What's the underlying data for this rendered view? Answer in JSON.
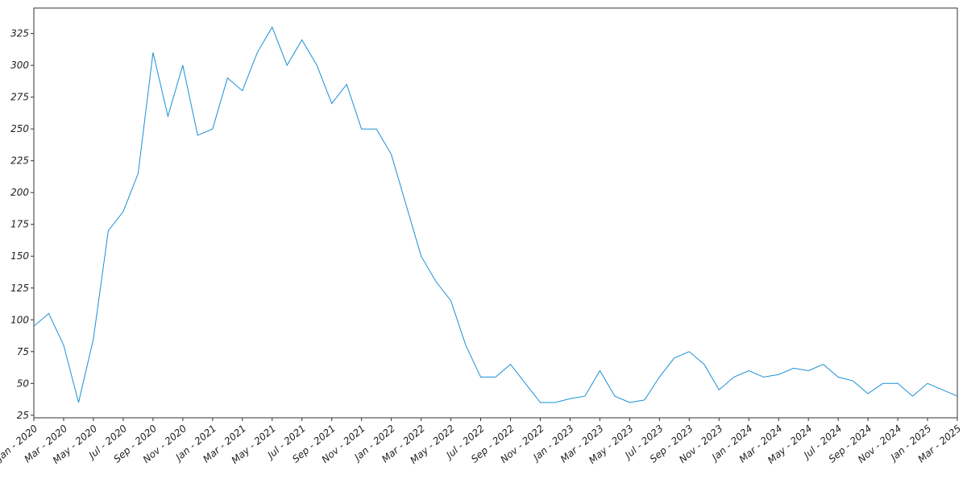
{
  "chart_data": {
    "type": "line",
    "x": [
      "2020-01",
      "2020-02",
      "2020-03",
      "2020-04",
      "2020-05",
      "2020-06",
      "2020-07",
      "2020-08",
      "2020-09",
      "2020-10",
      "2020-11",
      "2020-12",
      "2021-01",
      "2021-02",
      "2021-03",
      "2021-04",
      "2021-05",
      "2021-06",
      "2021-07",
      "2021-08",
      "2021-09",
      "2021-10",
      "2021-11",
      "2021-12",
      "2022-01",
      "2022-02",
      "2022-03",
      "2022-04",
      "2022-05",
      "2022-06",
      "2022-07",
      "2022-08",
      "2022-09",
      "2022-10",
      "2022-11",
      "2022-12",
      "2023-01",
      "2023-02",
      "2023-03",
      "2023-04",
      "2023-05",
      "2023-06",
      "2023-07",
      "2023-08",
      "2023-09",
      "2023-10",
      "2023-11",
      "2023-12",
      "2024-01",
      "2024-02",
      "2024-03",
      "2024-04",
      "2024-05",
      "2024-06",
      "2024-07",
      "2024-08",
      "2024-09",
      "2024-10",
      "2024-11",
      "2024-12",
      "2025-01",
      "2025-02",
      "2025-03"
    ],
    "series": [
      {
        "color": "#1a8fd6",
        "values": [
          95,
          105,
          80,
          35,
          85,
          170,
          185,
          215,
          310,
          260,
          300,
          245,
          250,
          290,
          280,
          310,
          330,
          300,
          320,
          300,
          270,
          285,
          250,
          250,
          230,
          190,
          150,
          130,
          115,
          80,
          55,
          55,
          65,
          50,
          35,
          35,
          38,
          40,
          60,
          40,
          35,
          37,
          55,
          70,
          75,
          65,
          45,
          55,
          60,
          55,
          57,
          62,
          60,
          65,
          55,
          52,
          42,
          50,
          50,
          40,
          50,
          45,
          40
        ]
      }
    ],
    "xlim": [
      "2020-01",
      "2025-03"
    ],
    "xticks": [
      {
        "value": "2020-01",
        "label": "Jan - 2020"
      },
      {
        "value": "2020-03",
        "label": "Mar - 2020"
      },
      {
        "value": "2020-05",
        "label": "May - 2020"
      },
      {
        "value": "2020-07",
        "label": "Jul - 2020"
      },
      {
        "value": "2020-09",
        "label": "Sep - 2020"
      },
      {
        "value": "2020-11",
        "label": "Nov - 2020"
      },
      {
        "value": "2021-01",
        "label": "Jan - 2021"
      },
      {
        "value": "2021-03",
        "label": "Mar - 2021"
      },
      {
        "value": "2021-05",
        "label": "May - 2021"
      },
      {
        "value": "2021-07",
        "label": "Jul - 2021"
      },
      {
        "value": "2021-09",
        "label": "Sep - 2021"
      },
      {
        "value": "2021-11",
        "label": "Nov - 2021"
      },
      {
        "value": "2022-01",
        "label": "Jan - 2022"
      },
      {
        "value": "2022-03",
        "label": "Mar - 2022"
      },
      {
        "value": "2022-05",
        "label": "May - 2022"
      },
      {
        "value": "2022-07",
        "label": "Jul - 2022"
      },
      {
        "value": "2022-09",
        "label": "Sep - 2022"
      },
      {
        "value": "2022-11",
        "label": "Nov - 2022"
      },
      {
        "value": "2023-01",
        "label": "Jan - 2023"
      },
      {
        "value": "2023-03",
        "label": "Mar - 2023"
      },
      {
        "value": "2023-05",
        "label": "May - 2023"
      },
      {
        "value": "2023-07",
        "label": "Jul - 2023"
      },
      {
        "value": "2023-09",
        "label": "Sep - 2023"
      },
      {
        "value": "2023-11",
        "label": "Nov - 2023"
      },
      {
        "value": "2024-01",
        "label": "Jan - 2024"
      },
      {
        "value": "2024-03",
        "label": "Mar - 2024"
      },
      {
        "value": "2024-05",
        "label": "May - 2024"
      },
      {
        "value": "2024-07",
        "label": "Jul - 2024"
      },
      {
        "value": "2024-09",
        "label": "Sep - 2024"
      },
      {
        "value": "2024-11",
        "label": "Nov - 2024"
      },
      {
        "value": "2025-01",
        "label": "Jan - 2025"
      },
      {
        "value": "2025-03",
        "label": "Mar - 2025"
      }
    ],
    "ylim": [
      23,
      345
    ],
    "yticks": [
      25,
      50,
      75,
      100,
      125,
      150,
      175,
      200,
      225,
      250,
      275,
      300,
      325
    ]
  }
}
